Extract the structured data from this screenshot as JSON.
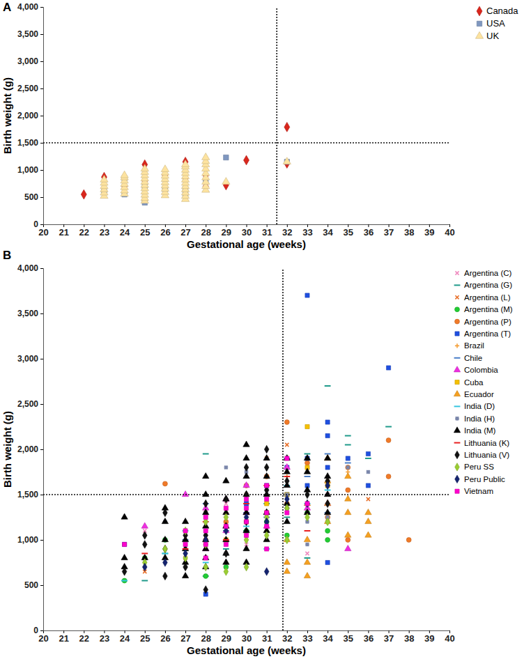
{
  "chart_data": [
    {
      "type": "scatter",
      "title": "A",
      "x_label": "Gestational age (weeks)",
      "y_label": "Birth weight (g)",
      "xlim": [
        20,
        40
      ],
      "ylim": [
        0,
        4000
      ],
      "xticks": [
        20,
        21,
        22,
        23,
        24,
        25,
        26,
        27,
        28,
        29,
        30,
        31,
        32,
        33,
        34,
        35,
        36,
        37,
        38,
        39,
        40
      ],
      "yticks": [
        0,
        500,
        {
          "value": 1000,
          "label": "1,000"
        },
        {
          "value": 1500,
          "label": "1,500"
        },
        {
          "value": 2000,
          "label": "2,000"
        },
        {
          "value": 2500,
          "label": "2,500"
        },
        {
          "value": 3000,
          "label": "3,000"
        },
        {
          "value": 3500,
          "label": "3,500"
        },
        {
          "value": 4000,
          "label": "4,000"
        }
      ],
      "grid": false,
      "legend": "right",
      "vline": 31.5,
      "hline": 1500,
      "series": [
        {
          "name": "Canada",
          "color": "#d9261c",
          "marker": "diamond",
          "x": [
            22,
            23,
            23,
            24,
            25,
            25,
            25,
            26,
            27,
            27,
            28,
            28,
            29,
            30,
            32,
            32
          ],
          "values": [
            550,
            870,
            620,
            700,
            1100,
            800,
            450,
            900,
            1150,
            850,
            700,
            900,
            720,
            1180,
            1790,
            1120
          ]
        },
        {
          "name": "USA",
          "color": "#7f97c0",
          "marker": "square",
          "x": [
            23,
            24,
            24,
            25,
            25,
            26,
            27,
            27,
            28,
            29,
            32
          ],
          "values": [
            600,
            550,
            850,
            400,
            700,
            650,
            550,
            650,
            800,
            1230,
            1150
          ]
        },
        {
          "name": "UK",
          "color": "#fde3a0",
          "marker": "triangle",
          "x": [
            23,
            23,
            23,
            23,
            23,
            23,
            24,
            24,
            24,
            24,
            24,
            24,
            24,
            25,
            25,
            25,
            25,
            25,
            25,
            25,
            25,
            25,
            25,
            25,
            26,
            26,
            26,
            26,
            26,
            26,
            26,
            26,
            26,
            27,
            27,
            27,
            27,
            27,
            27,
            27,
            27,
            27,
            27,
            27,
            27,
            28,
            28,
            28,
            28,
            28,
            28,
            28,
            28,
            28,
            29,
            32
          ],
          "values": [
            520,
            580,
            640,
            700,
            760,
            820,
            560,
            620,
            680,
            740,
            800,
            860,
            900,
            430,
            480,
            540,
            600,
            660,
            720,
            780,
            840,
            900,
            960,
            1020,
            530,
            590,
            650,
            710,
            770,
            830,
            890,
            950,
            1010,
            460,
            520,
            580,
            640,
            700,
            760,
            820,
            880,
            940,
            1000,
            1060,
            1100,
            630,
            700,
            780,
            860,
            940,
            1020,
            1100,
            1160,
            1230,
            780,
            1150
          ]
        }
      ]
    },
    {
      "type": "scatter",
      "title": "B",
      "x_label": "Gestational age (weeks)",
      "y_label": "Birth weight (g)",
      "xlim": [
        20,
        40
      ],
      "ylim": [
        0,
        4000
      ],
      "xticks": [
        20,
        21,
        22,
        23,
        24,
        25,
        26,
        27,
        28,
        29,
        30,
        31,
        32,
        33,
        34,
        35,
        36,
        37,
        38,
        39,
        40
      ],
      "yticks": [
        0,
        500,
        {
          "value": 1000,
          "label": "1,000"
        },
        {
          "value": 1500,
          "label": "1,500"
        },
        {
          "value": 2000,
          "label": "2,000"
        },
        {
          "value": 2500,
          "label": "2,500"
        },
        {
          "value": 3000,
          "label": "3,000"
        },
        {
          "value": 3500,
          "label": "3,500"
        },
        {
          "value": 4000,
          "label": "4,000"
        }
      ],
      "grid": false,
      "legend": "right",
      "vline": 31.8,
      "hline": 1500,
      "series": [
        {
          "name": "Argentina (C)",
          "color": "#f08cc0",
          "marker": "x",
          "x": [
            25,
            28,
            29,
            30,
            31,
            33,
            34,
            30
          ],
          "values": [
            1100,
            1200,
            1400,
            950,
            1300,
            850,
            1500,
            1200
          ]
        },
        {
          "name": "Argentina (G)",
          "color": "#1f9a8a",
          "marker": "dash",
          "x": [
            24,
            25,
            26,
            28,
            29,
            30,
            31,
            32,
            33,
            34,
            35,
            35,
            36,
            37,
            33,
            28
          ],
          "values": [
            550,
            550,
            850,
            1950,
            900,
            1100,
            1400,
            1250,
            1950,
            2700,
            2150,
            2050,
            1900,
            2250,
            800,
            600
          ]
        },
        {
          "name": "Argentina (L)",
          "color": "#e8702a",
          "marker": "x",
          "x": [
            25,
            27,
            28,
            29,
            30,
            31,
            32,
            33,
            34,
            36,
            31
          ],
          "values": [
            650,
            800,
            1300,
            1000,
            1500,
            1900,
            2050,
            1300,
            1200,
            1450,
            1700
          ]
        },
        {
          "name": "Argentina (M)",
          "color": "#22cc33",
          "marker": "circle",
          "x": [
            24,
            25,
            28,
            29,
            30,
            31,
            32,
            33,
            34,
            34,
            26
          ],
          "values": [
            550,
            800,
            600,
            700,
            1100,
            1200,
            1050,
            1300,
            1100,
            1000,
            1000
          ]
        },
        {
          "name": "Argentina (P)",
          "color": "#f07a28",
          "marker": "circle",
          "x": [
            26,
            28,
            30,
            31,
            32,
            33,
            34,
            35,
            35,
            35,
            37,
            37,
            38,
            29,
            32
          ],
          "values": [
            1620,
            1000,
            1600,
            1700,
            2300,
            1850,
            1250,
            1550,
            1800,
            1000,
            2100,
            1700,
            1000,
            1200,
            1400
          ]
        },
        {
          "name": "Argentina (T)",
          "color": "#1f4fe0",
          "marker": "square",
          "x": [
            24,
            28,
            30,
            31,
            32,
            32,
            33,
            33,
            34,
            34,
            34,
            34,
            35,
            36,
            36,
            37,
            33
          ],
          "values": [
            950,
            400,
            1400,
            1600,
            1800,
            1500,
            3700,
            1900,
            2300,
            2150,
            750,
            1800,
            1900,
            1950,
            1600,
            2900,
            1600
          ]
        },
        {
          "name": "Brazil",
          "color": "#f5a03a",
          "marker": "plus",
          "x": [
            27,
            28,
            29,
            30,
            31,
            32,
            33,
            34,
            35
          ],
          "values": [
            900,
            1200,
            1300,
            1500,
            1100,
            1700,
            1400,
            1600,
            1750
          ]
        },
        {
          "name": "Chile",
          "color": "#4a7ec8",
          "marker": "dash",
          "x": [
            27,
            28,
            29,
            30,
            31,
            32,
            33,
            34,
            35,
            34
          ],
          "values": [
            1000,
            1400,
            1100,
            1300,
            1250,
            1900,
            1700,
            1950,
            1850,
            1300
          ]
        },
        {
          "name": "Colombia",
          "color": "#ee2ee0",
          "marker": "triangle",
          "x": [
            25,
            27,
            28,
            29,
            30,
            31,
            32,
            33,
            34,
            35,
            28,
            29,
            30
          ],
          "values": [
            1150,
            1500,
            1350,
            1450,
            1300,
            1150,
            1800,
            1350,
            1400,
            900,
            900,
            1100,
            1600
          ]
        },
        {
          "name": "Cuba",
          "color": "#f5c000",
          "marker": "square",
          "x": [
            29,
            30,
            31,
            32,
            33,
            34,
            33,
            31
          ],
          "values": [
            1000,
            1200,
            1300,
            1500,
            2250,
            1600,
            1800,
            1400
          ]
        },
        {
          "name": "Ecuador",
          "color": "#f5a020",
          "marker": "triangle",
          "x": [
            32,
            32,
            33,
            33,
            33,
            34,
            34,
            34,
            35,
            35,
            35,
            35,
            36,
            36,
            36,
            32,
            33,
            34
          ],
          "values": [
            650,
            750,
            600,
            750,
            1400,
            1400,
            1200,
            1900,
            1050,
            1300,
            1700,
            1450,
            1050,
            1200,
            1300,
            1000,
            1000,
            1650
          ]
        },
        {
          "name": "India (D)",
          "color": "#36c5e0",
          "marker": "dash",
          "x": [
            24,
            26,
            28,
            29,
            30,
            31,
            32,
            33,
            34,
            27
          ],
          "values": [
            550,
            850,
            750,
            1000,
            1150,
            900,
            1600,
            1400,
            1550,
            1100
          ]
        },
        {
          "name": "India (H)",
          "color": "#7a86aa",
          "marker": "asterisk",
          "x": [
            26,
            28,
            29,
            30,
            31,
            32,
            33,
            33,
            34,
            35,
            36,
            27
          ],
          "values": [
            1200,
            1300,
            1800,
            1750,
            1600,
            1500,
            950,
            1200,
            1250,
            1800,
            1750,
            1100
          ]
        },
        {
          "name": "India (M)",
          "color": "#000000",
          "marker": "triangle",
          "x": [
            24,
            24,
            24,
            25,
            26,
            26,
            26,
            26,
            27,
            27,
            27,
            27,
            27,
            28,
            28,
            28,
            28,
            28,
            28,
            28,
            28,
            29,
            29,
            29,
            29,
            29,
            29,
            29,
            30,
            30,
            30,
            30,
            30,
            30,
            30,
            30,
            31,
            31,
            31,
            31,
            31,
            31,
            32,
            32,
            32,
            32,
            32,
            33,
            33,
            33,
            33,
            34,
            34,
            34,
            34
          ],
          "values": [
            1250,
            800,
            700,
            800,
            1350,
            1200,
            1000,
            800,
            1200,
            1000,
            900,
            750,
            600,
            1700,
            1500,
            1300,
            1150,
            1000,
            900,
            800,
            700,
            1650,
            1450,
            1300,
            1150,
            1000,
            850,
            750,
            2050,
            1900,
            1700,
            1500,
            1300,
            1100,
            900,
            750,
            1900,
            1700,
            1500,
            1300,
            1100,
            1000,
            1900,
            1750,
            1600,
            1400,
            1200,
            1900,
            1750,
            1550,
            1300,
            1900,
            1700,
            1500,
            1300
          ]
        },
        {
          "name": "Lithuania (K)",
          "color": "#e82020",
          "marker": "dash",
          "x": [
            25,
            27,
            28,
            29,
            30,
            31,
            32,
            33
          ],
          "values": [
            850,
            900,
            1200,
            1000,
            1400,
            1600,
            1700,
            1100
          ]
        },
        {
          "name": "Lithuania (V)",
          "color": "#111111",
          "marker": "diamond",
          "x": [
            24,
            25,
            25,
            26,
            26,
            26,
            27,
            27,
            28,
            28,
            28,
            29,
            29,
            29,
            30,
            30,
            30,
            31,
            31,
            31,
            31,
            32,
            32,
            33,
            34,
            34
          ],
          "values": [
            650,
            1050,
            950,
            1300,
            900,
            600,
            1050,
            700,
            1400,
            1050,
            450,
            1450,
            1150,
            850,
            1800,
            1500,
            1200,
            2000,
            1800,
            1550,
            1300,
            1650,
            1350,
            1500,
            1650,
            1400
          ]
        },
        {
          "name": "Peru SS",
          "color": "#9acd32",
          "marker": "diamond",
          "x": [
            25,
            26,
            27,
            27,
            28,
            28,
            28,
            29,
            29,
            30,
            30,
            31,
            31,
            32,
            32,
            33,
            34
          ],
          "values": [
            750,
            900,
            1100,
            800,
            1200,
            950,
            700,
            1250,
            650,
            1000,
            700,
            1050,
            1250,
            1350,
            1000,
            1250,
            1200
          ]
        },
        {
          "name": "Peru Public",
          "color": "#14236e",
          "marker": "diamond",
          "x": [
            25,
            26,
            27,
            28,
            29,
            30,
            31,
            31,
            32,
            33,
            34
          ],
          "values": [
            700,
            750,
            850,
            1000,
            1100,
            1250,
            650,
            1200,
            1450,
            1400,
            1600
          ]
        },
        {
          "name": "Vietnam",
          "color": "#ff00cc",
          "marker": "square",
          "x": [
            24,
            27,
            27,
            28,
            28,
            28,
            28,
            29,
            29,
            29,
            30,
            30,
            30,
            30,
            31,
            31,
            31,
            31,
            31,
            32,
            32,
            33
          ],
          "values": [
            950,
            1100,
            950,
            1250,
            1100,
            950,
            800,
            1350,
            1150,
            950,
            1450,
            1350,
            1200,
            1050,
            1600,
            1450,
            1300,
            1150,
            900,
            1900,
            1300,
            1400
          ]
        }
      ]
    }
  ]
}
